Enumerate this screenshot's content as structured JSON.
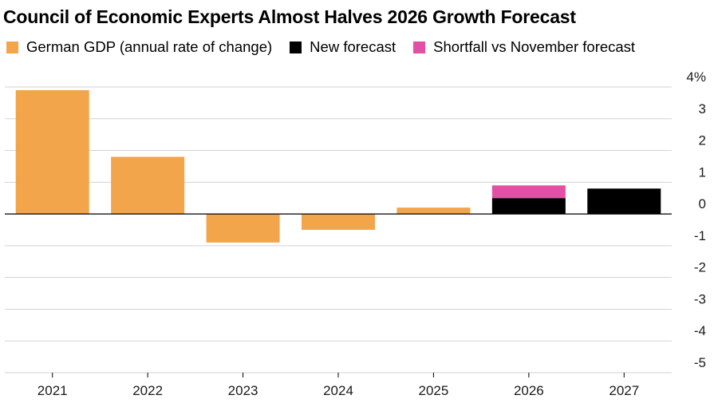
{
  "chart_data": {
    "type": "bar",
    "title": "Council of Economic Experts Almost Halves 2026 Growth Forecast",
    "legend": [
      {
        "name": "German GDP (annual rate of change)",
        "color": "#F2A54A"
      },
      {
        "name": "New forecast",
        "color": "#000000"
      },
      {
        "name": "Shortfall vs November forecast",
        "color": "#E44FA6"
      }
    ],
    "categories": [
      "2021",
      "2022",
      "2023",
      "2024",
      "2025",
      "2026",
      "2027"
    ],
    "series": [
      {
        "name": "German GDP (annual rate of change)",
        "color": "#F2A54A",
        "values": [
          3.9,
          1.8,
          -0.9,
          -0.5,
          0.2,
          null,
          null
        ]
      },
      {
        "name": "New forecast",
        "color": "#000000",
        "values": [
          null,
          null,
          null,
          null,
          null,
          0.5,
          0.8
        ]
      },
      {
        "name": "Shortfall vs November forecast",
        "color": "#E44FA6",
        "stacked_on": "New forecast",
        "values": [
          null,
          null,
          null,
          null,
          null,
          0.4,
          null
        ]
      }
    ],
    "yticks": [
      4,
      3,
      2,
      1,
      0,
      -1,
      -2,
      -3,
      -4,
      -5
    ],
    "ytick_labels": [
      "4%",
      "3",
      "2",
      "1",
      "0",
      "-1",
      "-2",
      "-3",
      "-4",
      "-5"
    ],
    "ylim": [
      -5,
      4
    ],
    "xlabel": "",
    "ylabel": "",
    "grid": true,
    "legend_position": "top-left"
  }
}
